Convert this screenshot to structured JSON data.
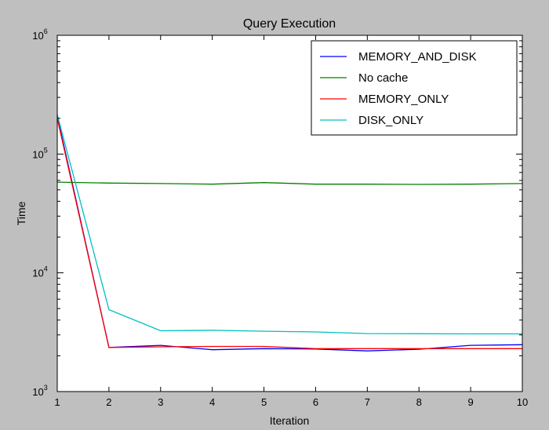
{
  "chart_data": {
    "type": "line",
    "title": "Query Execution",
    "xlabel": "Iteration",
    "ylabel": "Time",
    "xlim": [
      1,
      10
    ],
    "ylim": [
      1000,
      1000000
    ],
    "yscale": "log",
    "grid": false,
    "legend_position": "top-right",
    "x": [
      1,
      2,
      3,
      4,
      5,
      6,
      7,
      8,
      9,
      10
    ],
    "x_ticks": [
      "1",
      "2",
      "3",
      "4",
      "5",
      "6",
      "7",
      "8",
      "9",
      "10"
    ],
    "y_ticks": [
      {
        "value": 1000,
        "base": "10",
        "exp": "3"
      },
      {
        "value": 10000,
        "base": "10",
        "exp": "4"
      },
      {
        "value": 100000,
        "base": "10",
        "exp": "5"
      },
      {
        "value": 1000000,
        "base": "10",
        "exp": "6"
      }
    ],
    "series": [
      {
        "name": "MEMORY_AND_DISK",
        "color": "#0000ff",
        "values": [
          210000,
          2350,
          2450,
          2250,
          2300,
          2280,
          2200,
          2270,
          2450,
          2480
        ]
      },
      {
        "name": "No cache",
        "color": "#008000",
        "values": [
          58000,
          57000,
          56500,
          55800,
          57500,
          55800,
          55800,
          55500,
          55800,
          56500
        ]
      },
      {
        "name": "MEMORY_ONLY",
        "color": "#ff0000",
        "values": [
          200000,
          2350,
          2380,
          2400,
          2400,
          2300,
          2300,
          2300,
          2300,
          2300
        ]
      },
      {
        "name": "DISK_ONLY",
        "color": "#00bfbf",
        "values": [
          215000,
          4900,
          3250,
          3280,
          3220,
          3180,
          3080,
          3070,
          3060,
          3060
        ]
      }
    ]
  }
}
